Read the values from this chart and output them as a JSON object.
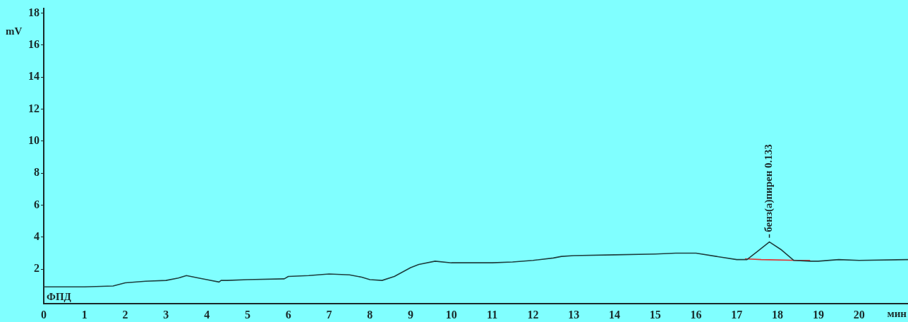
{
  "chart_data": {
    "type": "line",
    "xlabel": "мин",
    "ylabel": "mV",
    "xlim": [
      0,
      21.2
    ],
    "xticks": [
      0,
      1,
      2,
      3,
      4,
      5,
      6,
      7,
      8,
      9,
      10,
      11,
      12,
      13,
      14,
      15,
      16,
      17,
      18,
      19,
      20
    ],
    "ylim": [
      -0.15,
      18.3
    ],
    "yticks": [
      2,
      4,
      6,
      8,
      10,
      12,
      14,
      16,
      18
    ],
    "grid": false,
    "legend": false,
    "marker": "none",
    "line_style": "solid",
    "series": [
      {
        "color": "#1f3f3f",
        "x": [
          0,
          0.5,
          1,
          1.7,
          2,
          2.5,
          3,
          3.3,
          3.5,
          3.8,
          4,
          4.3,
          4.35,
          4.5,
          5,
          5.9,
          6,
          6.5,
          7,
          7.5,
          7.8,
          8,
          8.3,
          8.6,
          9,
          9.2,
          9.6,
          10,
          11,
          11.5,
          12,
          12.5,
          12.7,
          13,
          14,
          15,
          15.5,
          16,
          16.5,
          17,
          17.25,
          17.5,
          17.8,
          18.1,
          18.4,
          18.8,
          19,
          19.5,
          20,
          21.2
        ],
        "values": [
          0.9,
          0.9,
          0.9,
          0.95,
          1.15,
          1.25,
          1.3,
          1.45,
          1.6,
          1.45,
          1.35,
          1.2,
          1.3,
          1.3,
          1.35,
          1.4,
          1.55,
          1.6,
          1.7,
          1.65,
          1.5,
          1.35,
          1.3,
          1.55,
          2.1,
          2.3,
          2.5,
          2.4,
          2.4,
          2.45,
          2.55,
          2.7,
          2.8,
          2.85,
          2.9,
          2.95,
          3.0,
          3.0,
          2.8,
          2.6,
          2.6,
          3.1,
          3.7,
          3.2,
          2.55,
          2.5,
          2.5,
          2.6,
          2.55,
          2.6
        ]
      },
      {
        "color": "#e03030",
        "x": [
          17.2,
          17.6,
          18.5,
          18.8
        ],
        "values": [
          2.65,
          2.6,
          2.55,
          2.55
        ]
      }
    ],
    "annotations": [
      {
        "text": "бенз(а)пирен 0.133",
        "x": 17.8,
        "y": 3.7
      },
      "ФПД"
    ]
  }
}
